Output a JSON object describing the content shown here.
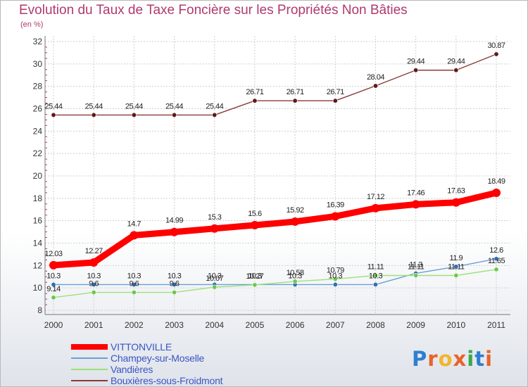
{
  "title": "Evolution du Taux de Taxe Foncière sur les Propriétés Non Bâties",
  "unit_label": "(en %)",
  "logo": {
    "text": "Proxiti",
    "colors": [
      "#2f7fcf",
      "#e8632a",
      "#f2b52b",
      "#e8632a",
      "#3aa84a",
      "#2f7fcf",
      "#e8632a"
    ]
  },
  "chart_data": {
    "type": "line",
    "title": "Evolution du Taux de Taxe Foncière sur les Propriétés Non Bâties",
    "ylabel": "(en %)",
    "xlabel": "",
    "ylim": [
      8,
      32
    ],
    "yticks": [
      8,
      10,
      12,
      14,
      16,
      18,
      20,
      22,
      24,
      26,
      28,
      30,
      32
    ],
    "grid": true,
    "x": [
      "2000",
      "2001",
      "2002",
      "2003",
      "2004",
      "2005",
      "2006",
      "2007",
      "2008",
      "2009",
      "2010",
      "2011"
    ],
    "series": [
      {
        "name": "Bouxières-sous-Froidmont",
        "color": "#8b3a3a",
        "marker": "#5c1a1a",
        "values": [
          25.44,
          25.44,
          25.44,
          25.44,
          25.44,
          26.71,
          26.71,
          26.71,
          28.04,
          29.44,
          29.44,
          30.87
        ],
        "labels": [
          "25.44",
          "25.44",
          "25.44",
          "25.44",
          "25.44",
          "26.71",
          "26.71",
          "26.71",
          "28.04",
          "29.44",
          "29.44",
          "30.87"
        ]
      },
      {
        "name": "VITTONVILLE",
        "color": "#ff0000",
        "marker": "#ff0000",
        "values": [
          12.03,
          12.27,
          14.7,
          14.99,
          15.3,
          15.6,
          15.92,
          16.39,
          17.12,
          17.46,
          17.63,
          18.49
        ],
        "labels": [
          "12.03",
          "12.27",
          "14.7",
          "14.99",
          "15.3",
          "15.6",
          "15.92",
          "16.39",
          "17.12",
          "17.46",
          "17.63",
          "18.49"
        ]
      },
      {
        "name": "Champey-sur-Moselle",
        "color": "#6a9fd8",
        "marker": "#2f6fb5",
        "values": [
          10.3,
          10.3,
          10.3,
          10.3,
          10.3,
          10.3,
          10.3,
          10.3,
          10.3,
          11.3,
          11.9,
          12.6
        ],
        "labels": [
          "10.3",
          "10.3",
          "10.3",
          "10.3",
          "10.3",
          "10.3",
          "10.3",
          "10.3",
          "10.3",
          "11.3",
          "11.9",
          "12.6"
        ]
      },
      {
        "name": "Vandières",
        "color": "#9de07a",
        "marker": "#6cc84a",
        "values": [
          9.14,
          9.6,
          9.6,
          9.6,
          10.07,
          10.27,
          10.58,
          10.79,
          11.11,
          11.11,
          11.11,
          11.65
        ],
        "labels": [
          "9.14",
          "9.6",
          "9.6",
          "9.6",
          "10.07",
          "10.27",
          "10.58",
          "10.79",
          "11.11",
          "11.11",
          "11.11",
          "11.65"
        ]
      }
    ],
    "legend": [
      {
        "name": "VITTONVILLE",
        "color": "#ff0000",
        "text_color": "#3b55c4",
        "weight": "thick"
      },
      {
        "name": "Champey-sur-Moselle",
        "color": "#6a9fd8",
        "text_color": "#3b55c4",
        "weight": "thin"
      },
      {
        "name": "Vandières",
        "color": "#9de07a",
        "text_color": "#3b55c4",
        "weight": "thin"
      },
      {
        "name": "Bouxières-sous-Froidmont",
        "color": "#8b3a3a",
        "text_color": "#3b55c4",
        "weight": "thin"
      }
    ],
    "legend_position": "bottom-left"
  }
}
